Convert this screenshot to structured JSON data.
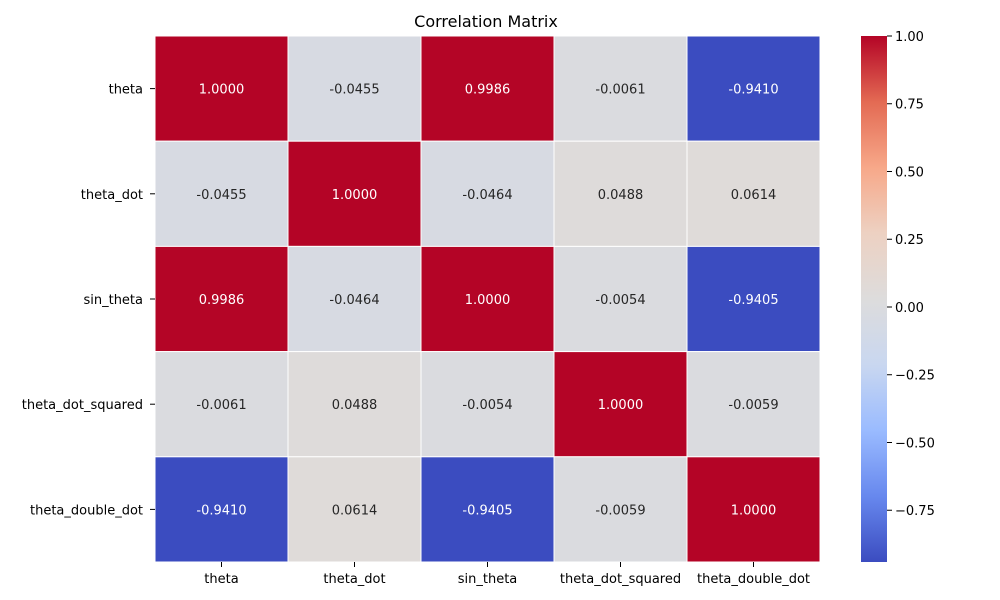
{
  "chart_data": {
    "type": "heatmap",
    "title": "Correlation Matrix",
    "xlabel": "",
    "ylabel": "",
    "x_categories": [
      "theta",
      "theta_dot",
      "sin_theta",
      "theta_dot_squared",
      "theta_double_dot"
    ],
    "y_categories": [
      "theta",
      "theta_dot",
      "sin_theta",
      "theta_dot_squared",
      "theta_double_dot"
    ],
    "values": [
      [
        1.0,
        -0.0455,
        0.9986,
        -0.0061,
        -0.941
      ],
      [
        -0.0455,
        1.0,
        -0.0464,
        0.0488,
        0.0614
      ],
      [
        0.9986,
        -0.0464,
        1.0,
        -0.0054,
        -0.9405
      ],
      [
        -0.0061,
        0.0488,
        -0.0054,
        1.0,
        -0.0059
      ],
      [
        -0.941,
        0.0614,
        -0.9405,
        -0.0059,
        1.0
      ]
    ],
    "value_labels": [
      [
        "1.0000",
        "-0.0455",
        "0.9986",
        "-0.0061",
        "-0.9410"
      ],
      [
        "-0.0455",
        "1.0000",
        "-0.0464",
        "0.0488",
        "0.0614"
      ],
      [
        "0.9986",
        "-0.0464",
        "1.0000",
        "-0.0054",
        "-0.9405"
      ],
      [
        "-0.0061",
        "0.0488",
        "-0.0054",
        "1.0000",
        "-0.0059"
      ],
      [
        "-0.9410",
        "0.0614",
        "-0.9405",
        "-0.0059",
        "1.0000"
      ]
    ],
    "colormap": "coolwarm",
    "colormap_stops": [
      "#3b4cc0",
      "#6788ee",
      "#9abbff",
      "#c9d7f0",
      "#dddcdc",
      "#edd1c2",
      "#f7a889",
      "#e36a53",
      "#b40426"
    ],
    "color_range": [
      -0.941,
      1.0
    ],
    "colorbar_ticks": [
      1.0,
      0.75,
      0.5,
      0.25,
      0.0,
      -0.25,
      -0.5,
      -0.75
    ],
    "colorbar_tick_labels": [
      "1.00",
      "0.75",
      "0.50",
      "0.25",
      "0.00",
      "−0.25",
      "−0.50",
      "−0.75"
    ],
    "grid_lines": "white",
    "legend": "colorbar-right"
  }
}
